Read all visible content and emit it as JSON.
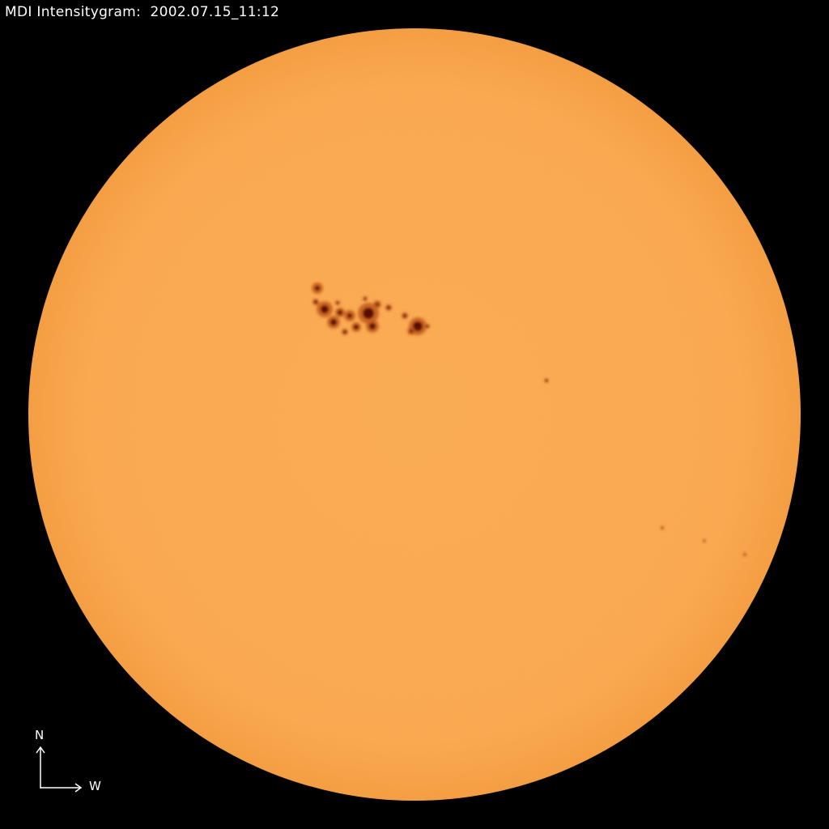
{
  "title": {
    "instrument": "MDI Intensitygram:",
    "timestamp": "2002.07.15_11:12"
  },
  "compass": {
    "north": "N",
    "west": "W"
  },
  "colors": {
    "background": "#000000",
    "disk": "#fba84e",
    "disk_limb": "#f39a3c",
    "umbra": "#5a0a06",
    "penumbra": "#c0561c"
  },
  "icons": [
    "compass-arrows-icon"
  ]
}
